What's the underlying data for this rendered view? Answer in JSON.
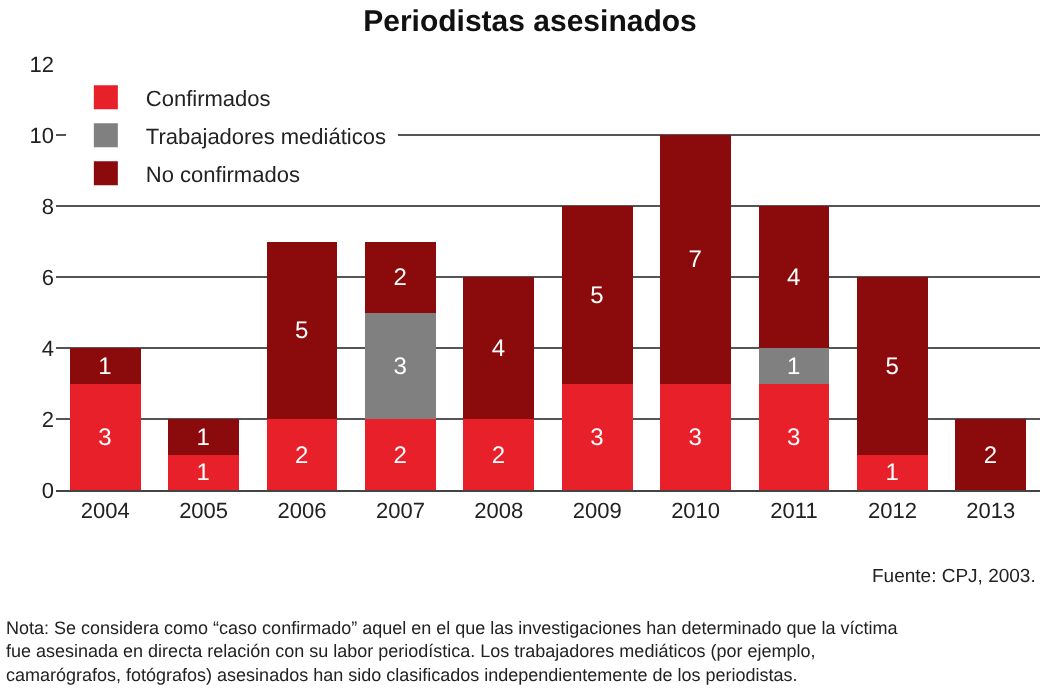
{
  "chart_data": {
    "type": "bar",
    "title": "Periodistas asesinados",
    "stacked": true,
    "categories": [
      "2004",
      "2005",
      "2006",
      "2007",
      "2008",
      "2009",
      "2010",
      "2011",
      "2012",
      "2013"
    ],
    "series": [
      {
        "name": "Confirmados",
        "color": "#e8202a",
        "values": [
          3,
          1,
          2,
          2,
          2,
          3,
          3,
          3,
          1,
          null
        ],
        "value_labels": [
          "3",
          "1",
          "2",
          "2",
          "2",
          "3",
          "3",
          "3",
          "1",
          null
        ]
      },
      {
        "name": "Trabajadores mediáticos",
        "color": "#808080",
        "values": [
          null,
          null,
          null,
          3,
          null,
          null,
          null,
          1,
          null,
          null
        ],
        "value_labels": [
          null,
          null,
          null,
          "3",
          null,
          null,
          null,
          "1",
          null,
          null
        ]
      },
      {
        "name": "No confirmados",
        "color": "#8b0a0c",
        "values": [
          1,
          1,
          5,
          2,
          4,
          5,
          7,
          4,
          5,
          2
        ],
        "value_labels": [
          "1",
          "1",
          "5",
          "2",
          "4",
          "5",
          "7",
          "4",
          "5",
          "2"
        ]
      }
    ],
    "ylim": [
      0,
      12
    ],
    "yticks": [
      0,
      2,
      4,
      6,
      8,
      10,
      12
    ],
    "grid": "y",
    "legend": "top left",
    "annotations": [
      "Fuente: CPJ, 2003.",
      "Nota: Se considera como “caso confirmado” aquel en el que las investigaciones han determinado que la víctima fue asesinada en directa relación con su labor periodística. Los trabajadores mediáticos (por ejemplo, camarógrafos, fotógrafos) asesinados han sido clasificados independientemente de los periodistas."
    ]
  }
}
